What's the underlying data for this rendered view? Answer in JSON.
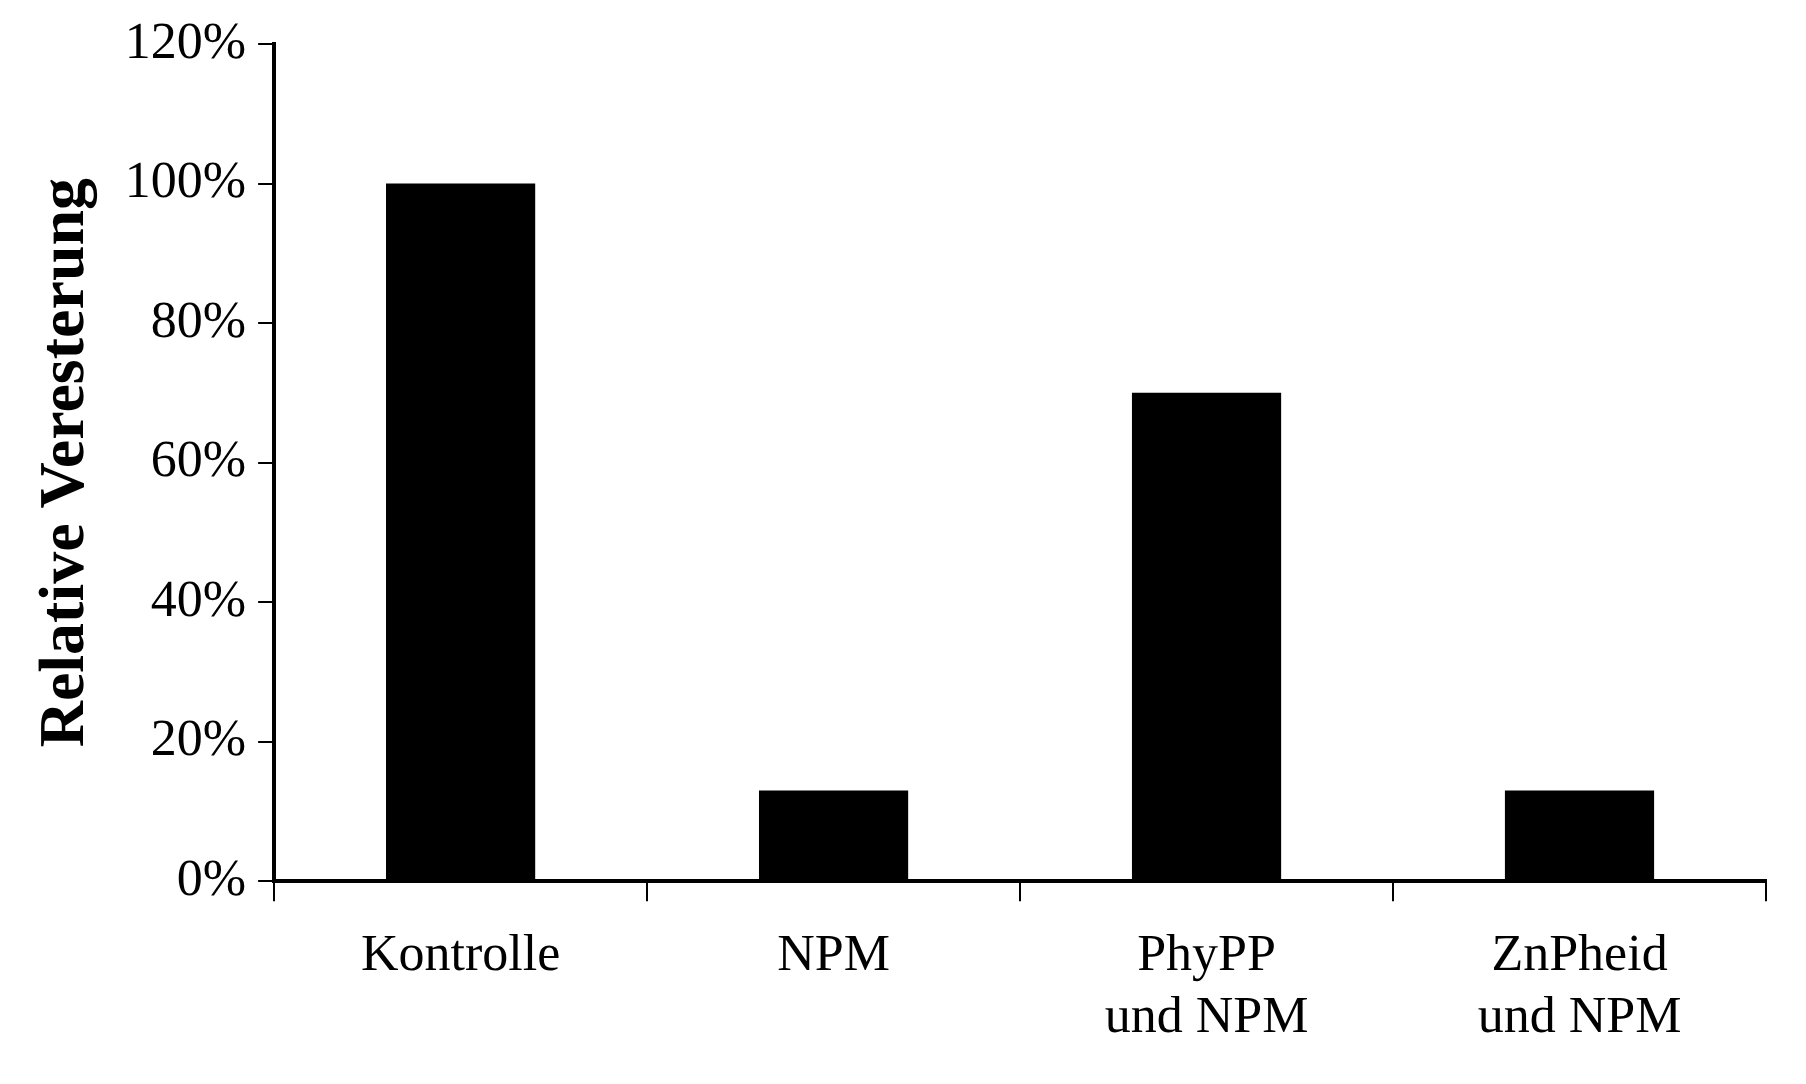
{
  "chart_data": {
    "type": "bar",
    "ylabel": "Relative Veresterung",
    "categories": [
      "Kontrolle",
      "NPM",
      "PhyPP und NPM",
      "ZnPheid und NPM"
    ],
    "values": [
      100,
      13,
      70,
      13
    ],
    "color": "#000000",
    "ylim": [
      0,
      120
    ],
    "yticks": [
      {
        "value": 0,
        "label": "0%"
      },
      {
        "value": 20,
        "label": "20%"
      },
      {
        "value": 40,
        "label": "40%"
      },
      {
        "value": 60,
        "label": "60%"
      },
      {
        "value": 80,
        "label": "80%"
      },
      {
        "value": 100,
        "label": "100%"
      },
      {
        "value": 120,
        "label": "120%"
      }
    ],
    "grid": false,
    "legend": false
  }
}
